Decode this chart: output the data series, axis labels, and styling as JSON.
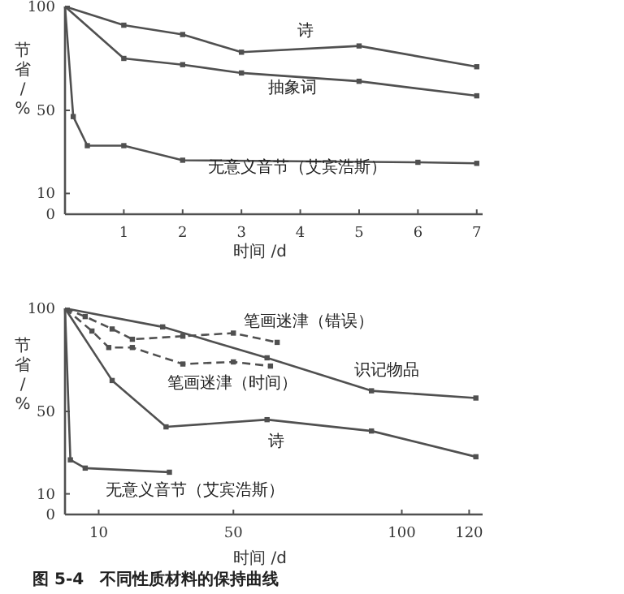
{
  "chart_data": [
    {
      "type": "line",
      "xlabel": "时间 /d",
      "ylabel": "节省/%",
      "xlim": [
        0,
        7.1
      ],
      "ylim": [
        0,
        100
      ],
      "xticks": [
        1,
        2,
        3,
        4,
        5,
        6,
        7
      ],
      "yticks": [
        0,
        10,
        50,
        100
      ],
      "marker": "square",
      "series": [
        {
          "name": "诗",
          "color": "#505050",
          "x": [
            0,
            1,
            2,
            3,
            5,
            7
          ],
          "values": [
            100,
            91,
            86.5,
            78,
            81,
            71
          ]
        },
        {
          "name": "抽象词",
          "color": "#505050",
          "x": [
            0,
            1,
            2,
            3,
            5,
            7
          ],
          "values": [
            100,
            75,
            72,
            68,
            64,
            57
          ]
        },
        {
          "name": "无意义音节（艾宾浩斯）",
          "color": "#505050",
          "x": [
            0,
            0.14,
            0.38,
            1,
            2,
            6,
            7
          ],
          "values": [
            100,
            47,
            33,
            33,
            26,
            25,
            24.5
          ]
        }
      ]
    },
    {
      "type": "line",
      "xlabel": "时间 /d",
      "ylabel": "节省/%",
      "xlim": [
        0,
        124
      ],
      "ylim": [
        0,
        100
      ],
      "xticks": [
        10,
        50,
        100,
        120
      ],
      "yticks": [
        0,
        10,
        50,
        100
      ],
      "marker": "square",
      "annotations": [
        "图 5-4　不同性质材料的保持曲线"
      ],
      "series": [
        {
          "name": "笔画迷津（错误）",
          "color": "#505050",
          "line_style": "dashed",
          "x": [
            0,
            6,
            14,
            20,
            35,
            50,
            63
          ],
          "values": [
            100,
            96,
            90,
            85,
            86.5,
            88,
            83.5
          ]
        },
        {
          "name": "笔画迷津（时间）",
          "color": "#505050",
          "line_style": "dashed",
          "x": [
            0,
            8,
            13,
            20,
            35,
            50,
            61
          ],
          "values": [
            100,
            89,
            81,
            81,
            73,
            74,
            72
          ]
        },
        {
          "name": "识记物品",
          "color": "#505050",
          "x": [
            0,
            29,
            60,
            91,
            122
          ],
          "values": [
            100,
            91,
            76,
            60,
            56.5
          ]
        },
        {
          "name": "诗",
          "color": "#505050",
          "x": [
            0,
            14,
            30,
            60,
            91,
            122
          ],
          "values": [
            100,
            65,
            42.5,
            46,
            40.5,
            28
          ]
        },
        {
          "name": "无意义音节（艾宾浩斯）",
          "color": "#505050",
          "x": [
            0,
            1.6,
            6,
            31
          ],
          "values": [
            100,
            26.5,
            22.5,
            20.5
          ]
        }
      ]
    }
  ]
}
